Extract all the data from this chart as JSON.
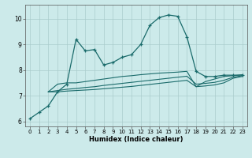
{
  "xlabel": "Humidex (Indice chaleur)",
  "bg_color": "#cceaea",
  "grid_color": "#aacccc",
  "line_color": "#1a6b6b",
  "xlim": [
    -0.5,
    23.5
  ],
  "ylim": [
    5.8,
    10.55
  ],
  "xticks": [
    0,
    1,
    2,
    3,
    4,
    5,
    6,
    7,
    8,
    9,
    10,
    11,
    12,
    13,
    14,
    15,
    16,
    17,
    18,
    19,
    20,
    21,
    22,
    23
  ],
  "yticks": [
    6,
    7,
    8,
    9,
    10
  ],
  "line1_x": [
    0,
    1,
    2,
    3,
    4,
    5,
    6,
    7,
    8,
    9,
    10,
    11,
    12,
    13,
    14,
    15,
    16,
    17,
    18,
    19,
    20,
    21,
    22,
    23
  ],
  "line1_y": [
    6.1,
    6.35,
    6.6,
    7.15,
    7.45,
    9.2,
    8.75,
    8.8,
    8.2,
    8.3,
    8.5,
    8.6,
    9.0,
    9.75,
    10.05,
    10.15,
    10.1,
    9.3,
    7.95,
    7.75,
    7.75,
    7.8,
    7.8,
    7.8
  ],
  "line2_x": [
    2,
    3,
    4,
    5,
    6,
    7,
    8,
    9,
    10,
    11,
    12,
    13,
    14,
    15,
    16,
    17,
    18,
    19,
    20,
    21,
    22,
    23
  ],
  "line2_y": [
    7.15,
    7.45,
    7.5,
    7.5,
    7.55,
    7.6,
    7.65,
    7.7,
    7.75,
    7.78,
    7.82,
    7.85,
    7.88,
    7.9,
    7.92,
    7.95,
    7.35,
    7.55,
    7.65,
    7.75,
    7.78,
    7.82
  ],
  "line3_x": [
    2,
    3,
    4,
    5,
    6,
    7,
    8,
    9,
    10,
    11,
    12,
    13,
    14,
    15,
    16,
    17,
    18,
    19,
    20,
    21,
    22,
    23
  ],
  "line3_y": [
    7.15,
    7.2,
    7.25,
    7.28,
    7.32,
    7.35,
    7.4,
    7.44,
    7.48,
    7.52,
    7.56,
    7.6,
    7.64,
    7.68,
    7.72,
    7.76,
    7.45,
    7.48,
    7.52,
    7.6,
    7.72,
    7.78
  ],
  "line4_x": [
    2,
    3,
    4,
    5,
    6,
    7,
    8,
    9,
    10,
    11,
    12,
    13,
    14,
    15,
    16,
    17,
    18,
    19,
    20,
    21,
    22,
    23
  ],
  "line4_y": [
    7.15,
    7.15,
    7.18,
    7.2,
    7.22,
    7.24,
    7.27,
    7.3,
    7.33,
    7.36,
    7.4,
    7.44,
    7.48,
    7.52,
    7.56,
    7.6,
    7.35,
    7.38,
    7.42,
    7.5,
    7.68,
    7.75
  ]
}
